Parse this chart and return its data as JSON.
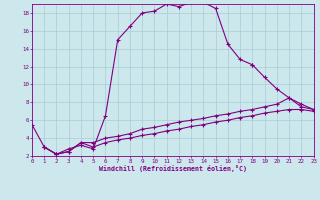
{
  "xlabel": "Windchill (Refroidissement éolien,°C)",
  "bg_color": "#cce8ed",
  "grid_color": "#aaccd4",
  "line_color": "#800080",
  "xlim": [
    0,
    23
  ],
  "ylim": [
    2,
    19
  ],
  "xticks": [
    0,
    1,
    2,
    3,
    4,
    5,
    6,
    7,
    8,
    9,
    10,
    11,
    12,
    13,
    14,
    15,
    16,
    17,
    18,
    19,
    20,
    21,
    22,
    23
  ],
  "yticks": [
    2,
    4,
    6,
    8,
    10,
    12,
    14,
    16,
    18
  ],
  "curve1_x": [
    0,
    1,
    2,
    3,
    4,
    5,
    6,
    7,
    8,
    9,
    10,
    11,
    12,
    13,
    14,
    15,
    16,
    17,
    18
  ],
  "curve1_y": [
    5.5,
    3.0,
    2.2,
    2.8,
    3.2,
    2.8,
    6.5,
    15.0,
    16.5,
    18.0,
    18.2,
    19.0,
    18.7,
    19.2,
    19.2,
    18.5,
    14.5,
    12.8,
    12.2
  ],
  "curve2_x": [
    18,
    19,
    20,
    21,
    22,
    23
  ],
  "curve2_y": [
    12.2,
    10.8,
    9.5,
    8.5,
    7.5,
    7.2
  ],
  "curve3_x": [
    1,
    2,
    3,
    4,
    5,
    6,
    7,
    8,
    9,
    10,
    11,
    12,
    13,
    14,
    15,
    16,
    17,
    18,
    19,
    20,
    21,
    22,
    23
  ],
  "curve3_y": [
    3.0,
    2.2,
    2.5,
    3.5,
    3.5,
    4.0,
    4.2,
    4.5,
    5.0,
    5.2,
    5.5,
    5.8,
    6.0,
    6.2,
    6.5,
    6.7,
    7.0,
    7.2,
    7.5,
    7.8,
    8.5,
    7.8,
    7.2
  ],
  "curve4_x": [
    1,
    2,
    3,
    4,
    5,
    6,
    7,
    8,
    9,
    10,
    11,
    12,
    13,
    14,
    15,
    16,
    17,
    18,
    19,
    20,
    21,
    22,
    23
  ],
  "curve4_y": [
    3.0,
    2.2,
    2.5,
    3.5,
    3.0,
    3.5,
    3.8,
    4.0,
    4.3,
    4.5,
    4.8,
    5.0,
    5.3,
    5.5,
    5.8,
    6.0,
    6.3,
    6.5,
    6.8,
    7.0,
    7.2,
    7.2,
    7.0
  ]
}
